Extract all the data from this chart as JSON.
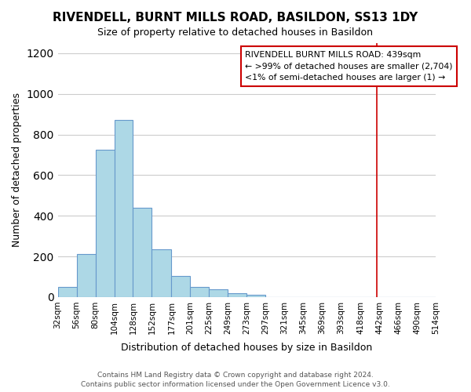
{
  "title": "RIVENDELL, BURNT MILLS ROAD, BASILDON, SS13 1DY",
  "subtitle": "Size of property relative to detached houses in Basildon",
  "xlabel": "Distribution of detached houses by size in Basildon",
  "ylabel": "Number of detached properties",
  "bar_left_edges": [
    32,
    56,
    80,
    104,
    128,
    152,
    177,
    201,
    225,
    249,
    273,
    297,
    321,
    345,
    369,
    393,
    418,
    442,
    466,
    490
  ],
  "bar_widths": [
    24,
    24,
    24,
    24,
    24,
    25,
    24,
    24,
    24,
    24,
    24,
    24,
    24,
    24,
    24,
    25,
    24,
    24,
    24,
    24
  ],
  "bar_heights": [
    50,
    210,
    725,
    870,
    440,
    235,
    105,
    50,
    40,
    20,
    10,
    0,
    0,
    0,
    0,
    0,
    0,
    0,
    0,
    0
  ],
  "tick_labels": [
    "32sqm",
    "56sqm",
    "80sqm",
    "104sqm",
    "128sqm",
    "152sqm",
    "177sqm",
    "201sqm",
    "225sqm",
    "249sqm",
    "273sqm",
    "297sqm",
    "321sqm",
    "345sqm",
    "369sqm",
    "393sqm",
    "418sqm",
    "442sqm",
    "466sqm",
    "490sqm",
    "514sqm"
  ],
  "tick_positions": [
    32,
    56,
    80,
    104,
    128,
    152,
    177,
    201,
    225,
    249,
    273,
    297,
    321,
    345,
    369,
    393,
    418,
    442,
    466,
    490,
    514
  ],
  "bar_color": "#add8e6",
  "bar_edge_color": "#6699cc",
  "vline_x": 439,
  "vline_color": "#cc0000",
  "ylim": [
    0,
    1250
  ],
  "xlim": [
    32,
    514
  ],
  "annotation_title": "RIVENDELL BURNT MILLS ROAD: 439sqm",
  "annotation_line1": "← >99% of detached houses are smaller (2,704)",
  "annotation_line2": "<1% of semi-detached houses are larger (1) →",
  "footer_line1": "Contains HM Land Registry data © Crown copyright and database right 2024.",
  "footer_line2": "Contains public sector information licensed under the Open Government Licence v3.0.",
  "background_color": "#ffffff",
  "grid_color": "#cccccc"
}
